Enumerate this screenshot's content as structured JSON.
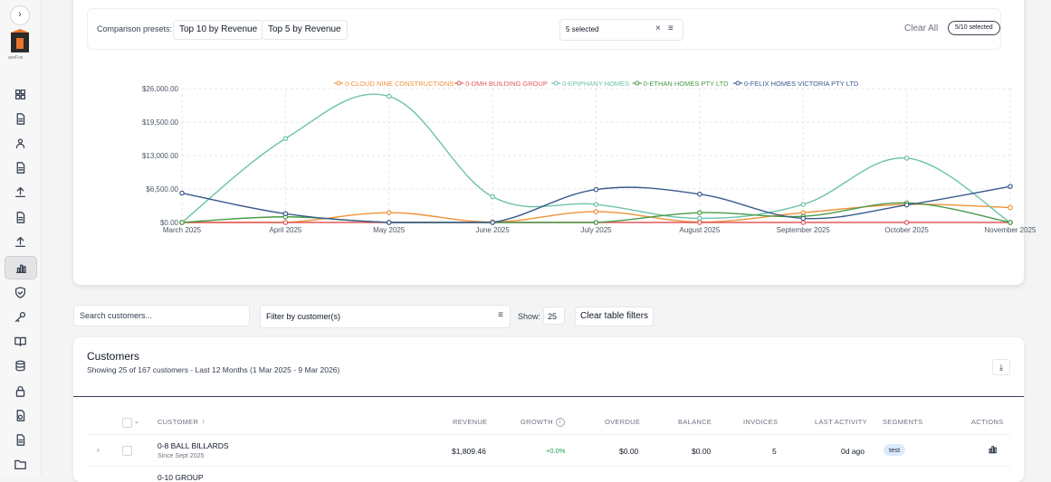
{
  "sidebar": {
    "logo_text": "aceFox",
    "items": [
      "grid-icon",
      "document-icon",
      "users-icon",
      "document-icon",
      "upload-icon",
      "document-icon",
      "upload-icon",
      "chart-icon",
      "shield-icon",
      "key-icon",
      "book-icon",
      "database-icon",
      "lock-icon",
      "file-chart-icon",
      "folder-icon"
    ],
    "active": "chart-icon"
  },
  "presets": {
    "label": "Comparison presets:",
    "buttons": [
      "Top 10 by Revenue",
      "Top 5 by Revenue"
    ],
    "select_text": "5 selected",
    "clear_icon": "×",
    "menu_icon": "≡",
    "clear_all": "Clear All",
    "selected_count": "5/10 selected"
  },
  "chart_data": {
    "type": "line",
    "x": [
      "March 2025",
      "April 2025",
      "May 2025",
      "June 2025",
      "July 2025",
      "August 2025",
      "September 2025",
      "October 2025",
      "November 2025"
    ],
    "y_ticks": [
      "$0.00",
      "$6,500.00",
      "$13,000.00",
      "$19,500.00",
      "$26,000.00"
    ],
    "ylim": [
      0,
      26000
    ],
    "grid": true,
    "legend_position": "top",
    "series": [
      {
        "name": "0-CLOUD NINE CONSTRUCTIONS",
        "color": "#f0923a",
        "values": [
          0,
          0,
          1900,
          100,
          2100,
          100,
          1900,
          3500,
          2900
        ]
      },
      {
        "name": "0-DMH BUILDING GROUP",
        "color": "#e05a5a",
        "values": [
          0,
          0,
          0,
          0,
          0,
          0,
          0,
          0,
          0
        ]
      },
      {
        "name": "0-EPIPHANY HOMES",
        "color": "#6cc3a8",
        "values": [
          0,
          16300,
          24500,
          5000,
          3500,
          800,
          3500,
          12500,
          0
        ]
      },
      {
        "name": "0-ETHAN HOMES PTY LTD",
        "color": "#4a9a48",
        "values": [
          0,
          1100,
          0,
          0,
          0,
          1900,
          1200,
          3800,
          0
        ]
      },
      {
        "name": "0-FELIX HOMES VICTORIA PTY LTD",
        "color": "#3b5b8c",
        "values": [
          5700,
          1700,
          0,
          0,
          6400,
          5500,
          800,
          3400,
          7000
        ]
      }
    ]
  },
  "filters": {
    "search_placeholder": "Search customers...",
    "customer_filter": "Filter by customer(s)",
    "customer_filter_icon": "≡",
    "show_label": "Show:",
    "show_value": "25",
    "clear_table": "Clear table filters"
  },
  "table": {
    "title": "Customers",
    "subtitle": "Showing 25 of 167 customers - Last 12 Months (1 Mar 2025 - 9 Mar 2026)",
    "columns": [
      "CUSTOMER",
      "REVENUE",
      "GROWTH",
      "OVERDUE",
      "BALANCE",
      "INVOICES",
      "LAST ACTIVITY",
      "SEGMENTS",
      "ACTIONS"
    ],
    "rows": [
      {
        "name": "0-8 BALL BILLARDS",
        "since": "Since Sept 2025",
        "revenue": "$1,809.46",
        "growth": "+0.0%",
        "overdue": "$0.00",
        "balance": "$0.00",
        "invoices": "5",
        "last_activity": "0d ago",
        "segment": "test"
      },
      {
        "name": "0-10 GROUP",
        "since": "",
        "revenue": "",
        "growth": "",
        "overdue": "",
        "balance": "",
        "invoices": "",
        "last_activity": "",
        "segment": ""
      }
    ]
  }
}
